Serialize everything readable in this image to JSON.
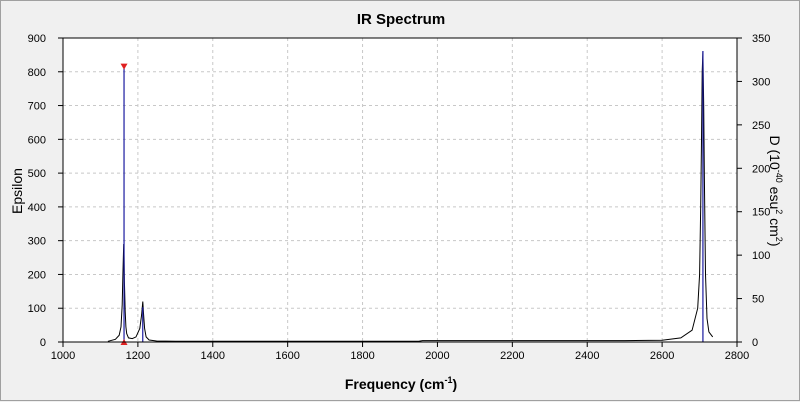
{
  "window": {
    "title": "IR Spectrum"
  },
  "chart_data": {
    "type": "line",
    "title": "IR Spectrum",
    "xlabel": "Frequency (cm",
    "xlabel_sup": "-1",
    "xlabel_end": ")",
    "ylabel_left": "Epsilon",
    "ylabel_right_parts": [
      "D (10",
      "-40",
      " esu",
      "2",
      " cm",
      "2",
      ")"
    ],
    "xlim": [
      1000,
      2800
    ],
    "ylim_left": [
      0,
      900
    ],
    "ylim_right": [
      0,
      350
    ],
    "x_ticks": [
      1000,
      1200,
      1400,
      1600,
      1800,
      2000,
      2200,
      2400,
      2600,
      2800
    ],
    "y_left_ticks": [
      0,
      100,
      200,
      300,
      400,
      500,
      600,
      700,
      800,
      900
    ],
    "y_right_ticks": [
      0,
      50,
      100,
      150,
      200,
      250,
      300,
      350
    ],
    "grid": true,
    "series": [
      {
        "kind": "spectrum",
        "axis": "left",
        "color": "#000000",
        "x": [
          1120,
          1140,
          1150,
          1155,
          1158,
          1160,
          1162,
          1163,
          1164,
          1166,
          1168,
          1170,
          1175,
          1185,
          1195,
          1205,
          1210,
          1213,
          1215,
          1218,
          1222,
          1230,
          1250,
          1300,
          1400,
          1600,
          1800,
          1950,
          1960,
          2200,
          2500,
          2600,
          2650,
          2680,
          2695,
          2700,
          2703,
          2705,
          2707,
          2709,
          2711,
          2713,
          2716,
          2720,
          2725,
          2735
        ],
        "y": [
          2,
          8,
          20,
          45,
          110,
          200,
          290,
          260,
          180,
          90,
          45,
          25,
          12,
          10,
          15,
          40,
          80,
          120,
          85,
          40,
          15,
          6,
          3,
          2,
          2,
          2,
          2,
          2,
          4,
          4,
          4,
          5,
          12,
          35,
          100,
          200,
          400,
          570,
          800,
          860,
          700,
          480,
          200,
          70,
          30,
          15
        ]
      },
      {
        "kind": "sticks",
        "axis": "right",
        "color": "#1a1aa0",
        "x": [
          1163,
          1213,
          2709
        ],
        "y": [
          317,
          40,
          335
        ]
      }
    ],
    "markers": [
      {
        "shape": "down-triangle",
        "color": "#e02020",
        "x": 1163,
        "y": 317,
        "axis": "right"
      },
      {
        "shape": "up-triangle",
        "color": "#e02020",
        "x": 1163,
        "y": 0,
        "axis": "right"
      }
    ]
  }
}
